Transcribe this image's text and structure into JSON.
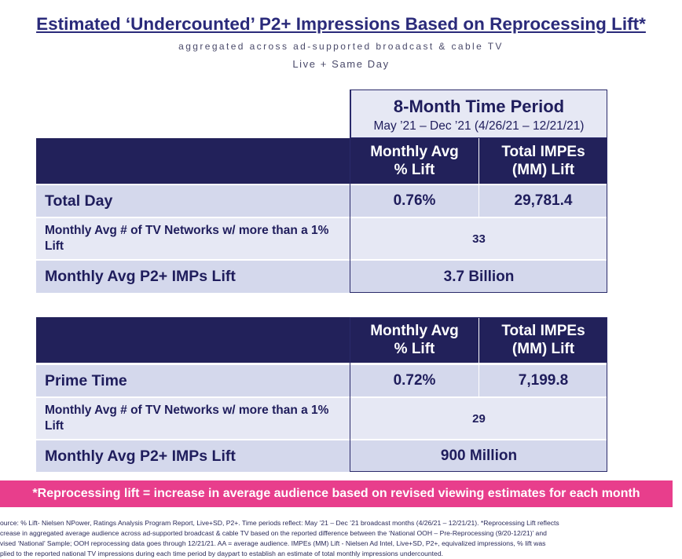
{
  "title": "Estimated ‘Undercounted’ P2+ Impressions Based on Reprocessing Lift*",
  "subtitle": "aggregated across ad-supported broadcast & cable TV",
  "subtitle2": "Live + Same Day",
  "period": {
    "title": "8-Month Time Period",
    "range": "May ’21 – Dec ’21 (4/26/21 – 12/21/21)"
  },
  "table1": {
    "header_col1": "Monthly Avg\n%  Lift",
    "header_col2": "Total IMPEs\n(MM) Lift",
    "row1_label": "Total Day",
    "row1_val1": "0.76%",
    "row1_val2": "29,781.4",
    "row2_label": "Monthly Avg # of TV Networks w/ more than a 1% Lift",
    "row2_val": "33",
    "row3_label": "Monthly Avg P2+ IMPs Lift",
    "row3_val": "3.7 Billion"
  },
  "table2": {
    "header_col1": "Monthly Avg\n% Lift",
    "header_col2": "Total IMPEs\n(MM) Lift",
    "row1_label": "Prime Time",
    "row1_val1": "0.72%",
    "row1_val2": "7,199.8",
    "row2_label": "Monthly Avg # of TV Networks w/ more than a 1% Lift",
    "row2_val": "29",
    "row3_label": "Monthly Avg P2+ IMPs Lift",
    "row3_val": "900 Million"
  },
  "banner": "*Reprocessing lift = increase in average audience based on revised viewing estimates for each month",
  "footnote": {
    "line1": "ource: % Lift- Nielsen NPower, Ratings Analysis Program Report, Live+SD, P2+. Time periods reflect: May ’21 – Dec ’21 broadcast months (4/26/21 – 12/21/21). *Reprocessing Lift reflects",
    "line2": "crease in aggregated average audience across ad-supported broadcast & cable TV based on the reported difference between the ‘National OOH – Pre-Reprocessing (9/20-12/21)’ and",
    "line3": "vised ‘National’ Sample; OOH reprocessing data goes through 12/21/21. AA = average audience. IMPEs (MM) Lift - Nielsen Ad Intel, Live+SD, P2+, equivalized impressions, % lift was",
    "line4": "plied to the reported national TV impressions during each time period by daypart to establish an estimate of total monthly impressions undercounted."
  },
  "colors": {
    "navy": "#22215a",
    "light_row": "#d4d8ec",
    "lighter_row": "#e6e8f4",
    "banner_pink": "#e83e8c"
  }
}
